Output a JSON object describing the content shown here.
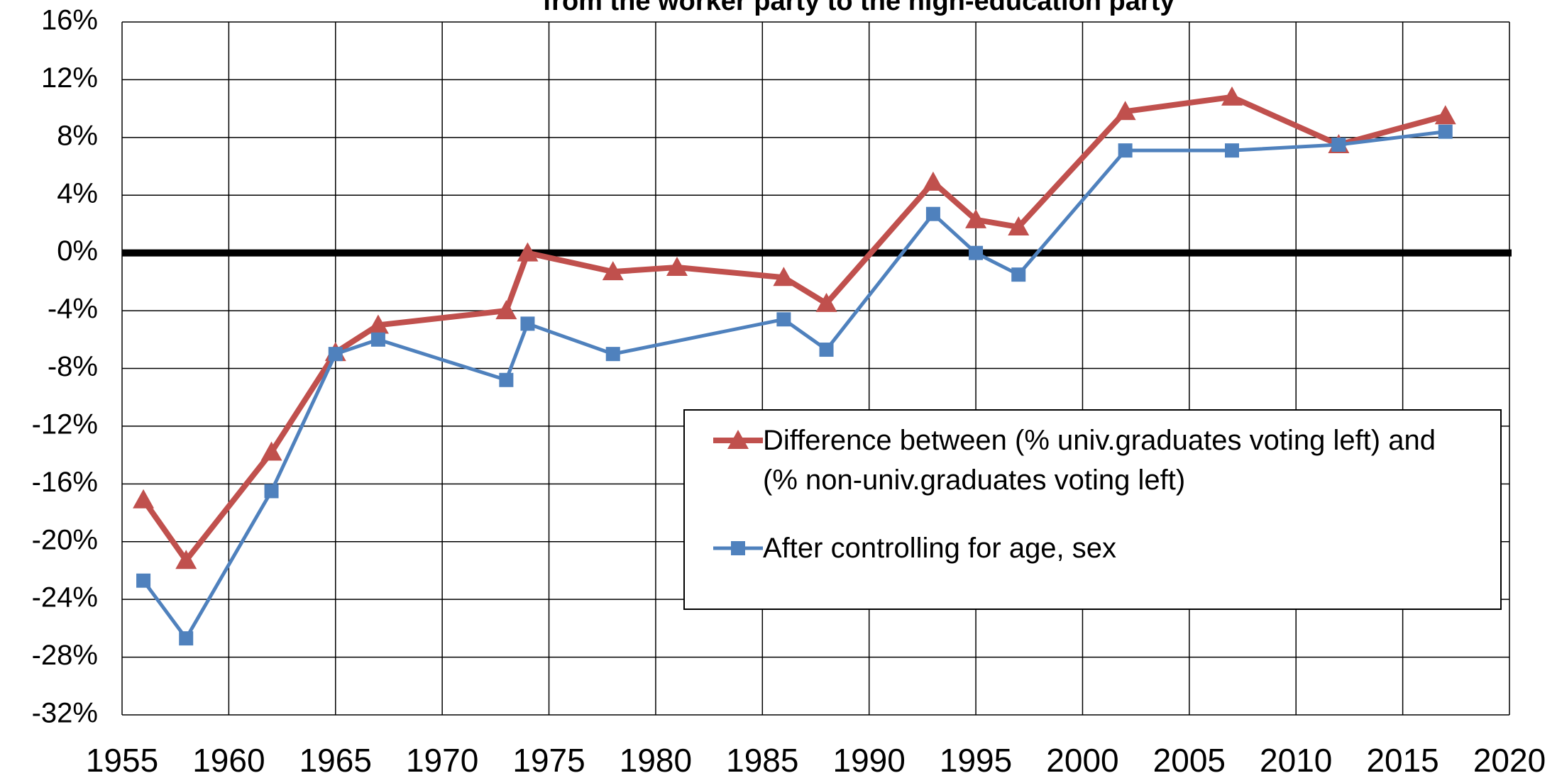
{
  "chart_data": {
    "type": "line",
    "title": "from the worker party to the high-education party",
    "xlim": [
      1955,
      2020
    ],
    "xticks": [
      1955,
      1960,
      1965,
      1970,
      1975,
      1980,
      1985,
      1990,
      1995,
      2000,
      2005,
      2010,
      2015,
      2020
    ],
    "ylim": [
      -32,
      16
    ],
    "yticks": [
      {
        "value": -32,
        "label": "-32%"
      },
      {
        "value": -28,
        "label": "-28%"
      },
      {
        "value": -24,
        "label": "-24%"
      },
      {
        "value": -20,
        "label": "-20%"
      },
      {
        "value": -16,
        "label": "-16%"
      },
      {
        "value": -12,
        "label": "-12%"
      },
      {
        "value": -8,
        "label": "-8%"
      },
      {
        "value": -4,
        "label": "-4%"
      },
      {
        "value": 0,
        "label": "0%"
      },
      {
        "value": 4,
        "label": "4%"
      },
      {
        "value": 8,
        "label": "8%"
      },
      {
        "value": 12,
        "label": "12%"
      },
      {
        "value": 16,
        "label": "16%"
      }
    ],
    "grid": true,
    "series": [
      {
        "name": "Difference between (% univ.graduates voting left) and (% non-univ.graduates voting left)",
        "color": "#c0504d",
        "marker": "triangle",
        "x": [
          1956,
          1958,
          1962,
          1965,
          1967,
          1973,
          1974,
          1978,
          1981,
          1986,
          1988,
          1993,
          1995,
          1997,
          2002,
          2007,
          2012,
          2017
        ],
        "values": [
          -17.1,
          -21.3,
          -13.8,
          -6.9,
          -5.0,
          -4.0,
          0.0,
          -1.3,
          -1.0,
          -1.7,
          -3.5,
          4.9,
          2.3,
          1.8,
          9.8,
          10.8,
          7.5,
          9.5
        ]
      },
      {
        "name": "After controlling for age, sex",
        "color": "#4f81bd",
        "marker": "square",
        "x": [
          1956,
          1958,
          1962,
          1965,
          1967,
          1973,
          1974,
          1978,
          1986,
          1988,
          1993,
          1995,
          1997,
          2002,
          2007,
          2012,
          2017
        ],
        "values": [
          -22.7,
          -26.7,
          -16.5,
          -7.0,
          -6.0,
          -8.8,
          -4.9,
          -7.0,
          -4.6,
          -6.7,
          2.7,
          0.0,
          -1.5,
          7.1,
          7.1,
          7.5,
          8.4
        ]
      }
    ]
  }
}
